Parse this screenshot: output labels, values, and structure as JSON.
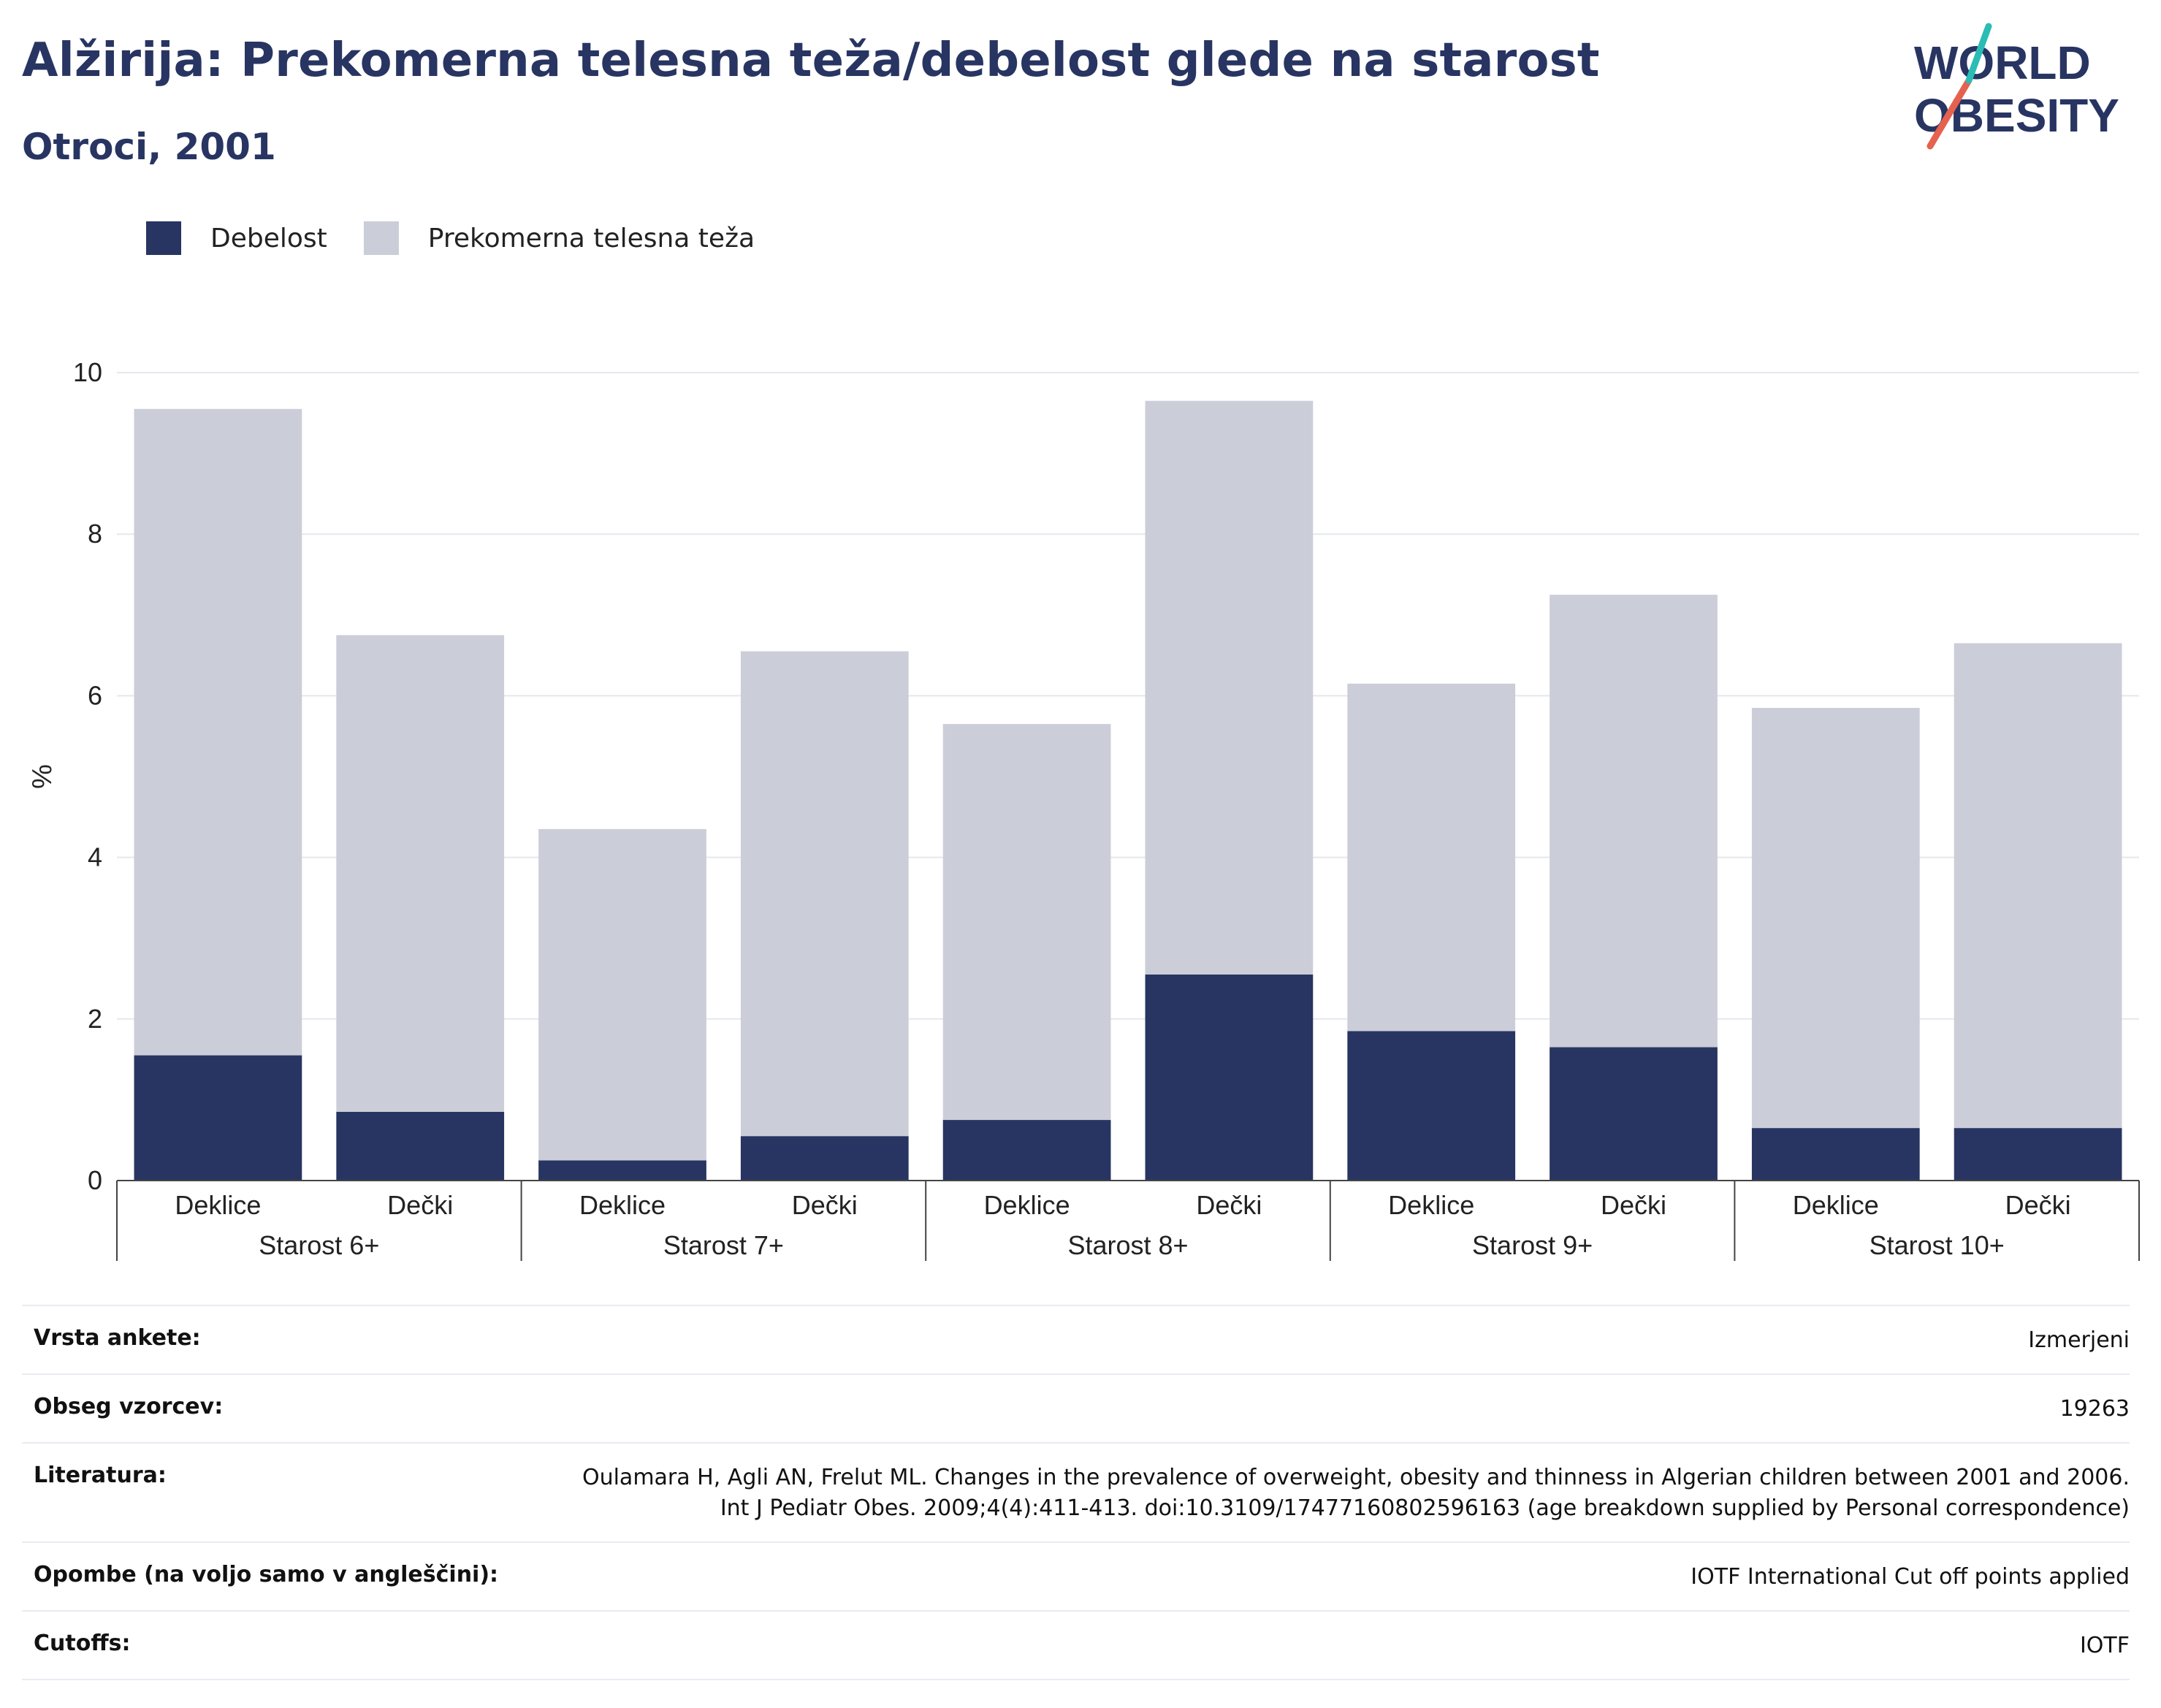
{
  "title": "Alžirija: Prekomerna telesna teža/debelost glede na starost",
  "subtitle": "Otroci, 2001",
  "logo": {
    "line1": "WORLD",
    "line2": "OBESITY"
  },
  "colors": {
    "obesity": "#283562",
    "overweight": "#cbcdd8",
    "title": "#283562",
    "accent_red": "#e5624f",
    "accent_teal": "#2bbcb6"
  },
  "legend": [
    {
      "label": "Debelost",
      "color": "#283562"
    },
    {
      "label": "Prekomerna telesna teža",
      "color": "#cbcdd8"
    }
  ],
  "chart_data": {
    "type": "bar",
    "stacked": true,
    "ylabel": "%",
    "ylim": [
      0,
      10
    ],
    "yticks": [
      0,
      2,
      4,
      6,
      8,
      10
    ],
    "grid": true,
    "legend_position": "top-left",
    "groups": [
      "Starost 6+",
      "Starost 7+",
      "Starost 8+",
      "Starost 9+",
      "Starost 10+"
    ],
    "categories": [
      "Deklice",
      "Dečki",
      "Deklice",
      "Dečki",
      "Deklice",
      "Dečki",
      "Deklice",
      "Dečki",
      "Deklice",
      "Dečki"
    ],
    "series": [
      {
        "name": "Debelost",
        "values": [
          1.55,
          0.85,
          0.25,
          0.55,
          0.75,
          2.55,
          1.85,
          1.65,
          0.65,
          0.65
        ]
      },
      {
        "name": "Prekomerna telesna teža",
        "values": [
          8.0,
          5.9,
          4.1,
          6.0,
          4.9,
          7.1,
          4.3,
          5.6,
          5.2,
          6.0
        ]
      }
    ]
  },
  "info_table": [
    {
      "key": "Vrsta ankete:",
      "value": "Izmerjeni"
    },
    {
      "key": "Obseg vzorcev:",
      "value": "19263"
    },
    {
      "key": "Literatura:",
      "value": "Oulamara H, Agli AN, Frelut ML. Changes in the prevalence of overweight, obesity and thinness in Algerian children between 2001 and 2006. Int J Pediatr Obes. 2009;4(4):411-413. doi:10.3109/17477160802596163 (age breakdown supplied by Personal correspondence)"
    },
    {
      "key": "Opombe (na voljo samo v angleščini):",
      "value": "IOTF International Cut off points applied"
    },
    {
      "key": "Cutoffs:",
      "value": "IOTF"
    }
  ]
}
